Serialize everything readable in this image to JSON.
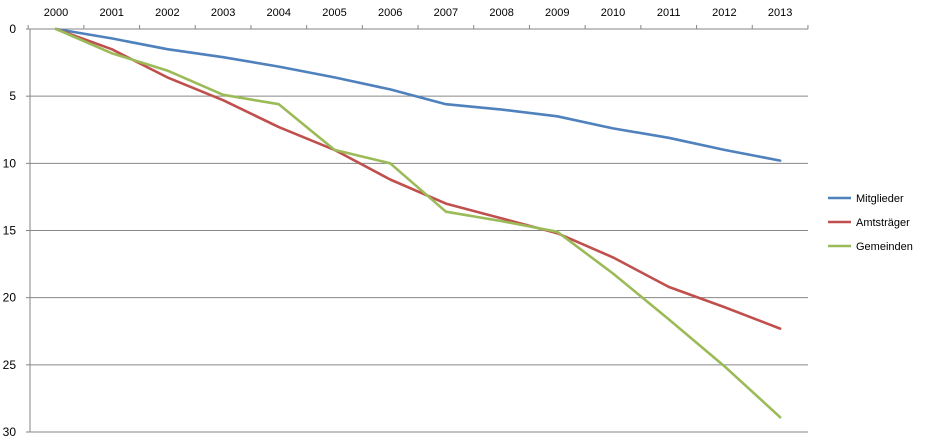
{
  "chart_data": {
    "type": "line",
    "title": "",
    "xlabel": "",
    "ylabel": "",
    "x": [
      "2000",
      "2001",
      "2002",
      "2003",
      "2004",
      "2005",
      "2006",
      "2007",
      "2008",
      "2009",
      "2010",
      "2011",
      "2012",
      "2013"
    ],
    "ylim": [
      0,
      30
    ],
    "y_inverted": true,
    "y_ticks": [
      0,
      5,
      10,
      15,
      20,
      25,
      30
    ],
    "x_axis_position": "top",
    "grid": true,
    "legend_position": "right",
    "series": [
      {
        "name": "Mitglieder",
        "color": "#4F81BD",
        "values": [
          0,
          0.7,
          1.5,
          2.1,
          2.8,
          3.6,
          4.5,
          5.6,
          6.0,
          6.5,
          7.4,
          8.1,
          9.0,
          9.8
        ]
      },
      {
        "name": "Amtsträger",
        "color": "#C0504D",
        "values": [
          0,
          1.5,
          3.6,
          5.3,
          7.3,
          9.0,
          11.2,
          13.0,
          14.1,
          15.2,
          17.0,
          19.2,
          20.7,
          22.3
        ]
      },
      {
        "name": "Gemeinden",
        "color": "#9BBB59",
        "values": [
          0,
          1.8,
          3.1,
          4.9,
          5.6,
          9.0,
          10.0,
          13.6,
          14.3,
          15.1,
          18.2,
          21.6,
          25.1,
          28.9
        ]
      }
    ]
  }
}
